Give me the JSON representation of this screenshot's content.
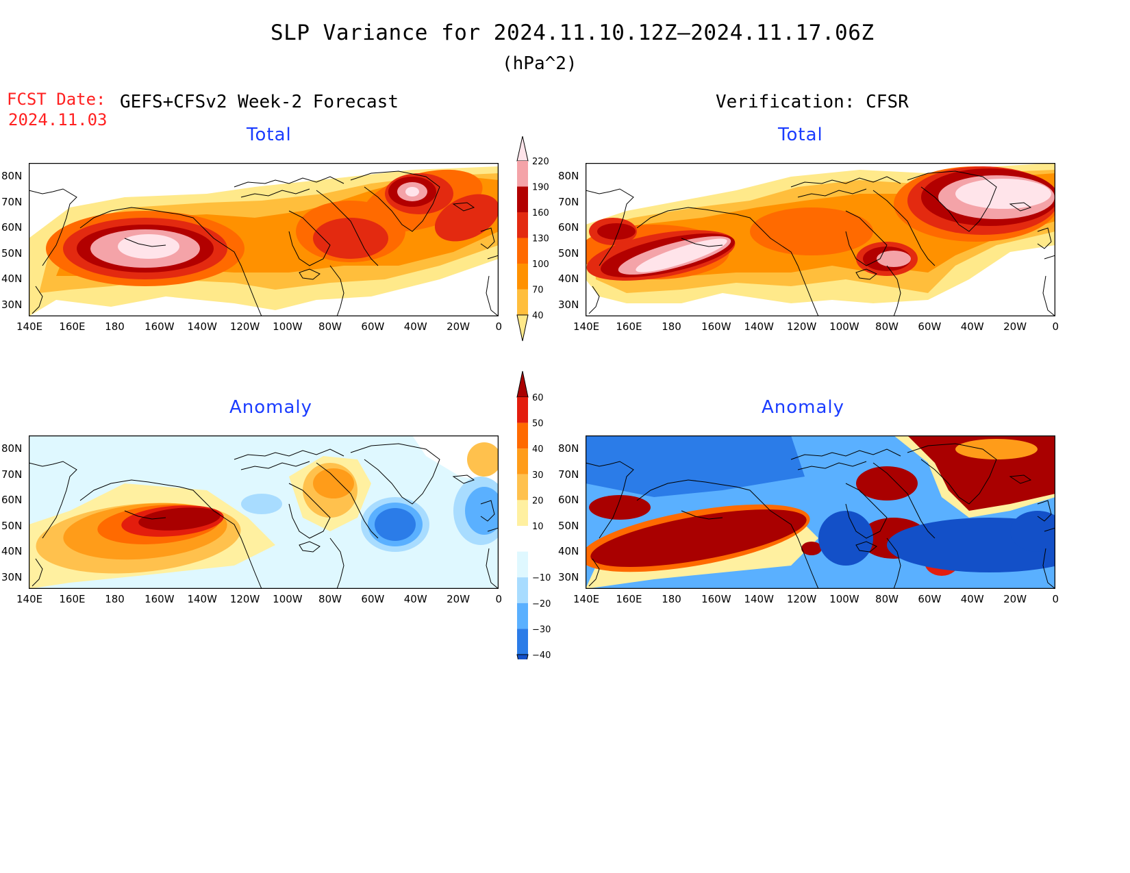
{
  "header": {
    "title": "SLP Variance for 2024.11.10.12Z–2024.11.17.06Z",
    "units": "(hPa^2)",
    "fcst_label": "FCST Date:",
    "fcst_date": "2024.11.03",
    "left_heading": "GEFS+CFSv2 Week-2 Forecast",
    "right_heading": "Verification: CFSR"
  },
  "panels": {
    "total_title": "Total",
    "anomaly_title": "Anomaly"
  },
  "axes": {
    "lon_ticks": [
      "140E",
      "160E",
      "180",
      "160W",
      "140W",
      "120W",
      "100W",
      "80W",
      "60W",
      "40W",
      "20W",
      "0"
    ],
    "lat_ticks": [
      "80N",
      "70N",
      "60N",
      "50N",
      "40N",
      "30N"
    ]
  },
  "colorbars": {
    "total": {
      "labels": [
        "40",
        "70",
        "100",
        "130",
        "160",
        "190",
        "220"
      ],
      "colors": [
        "#ffe98a",
        "#ffbe3c",
        "#ff9100",
        "#ff6a00",
        "#e32a10",
        "#b20000",
        "#f4a3a8",
        "#ffe4ea"
      ]
    },
    "anomaly": {
      "labels": [
        "60",
        "50",
        "40",
        "30",
        "20",
        "10",
        "−10",
        "−20",
        "−30",
        "−40"
      ],
      "colors": [
        "#a90000",
        "#e31d0d",
        "#ff6a00",
        "#ff9c19",
        "#ffc14d",
        "#fff0a0",
        "#ffffff",
        "#dff8ff",
        "#a8dcff",
        "#5ab0ff",
        "#2b7ce8",
        "#1350c8"
      ]
    }
  },
  "palette": {
    "total_levels": [
      "#ffe98a",
      "#ffbe3c",
      "#ff9100",
      "#ff6a00",
      "#e32a10",
      "#b20000",
      "#f4a3a8",
      "#ffe4ea"
    ],
    "anom_pos": [
      "#fff0a0",
      "#ffc14d",
      "#ff9c19",
      "#ff6a00",
      "#e31d0d",
      "#a90000"
    ],
    "anom_neg": [
      "#dff8ff",
      "#a8dcff",
      "#5ab0ff",
      "#2b7ce8",
      "#1350c8"
    ]
  }
}
